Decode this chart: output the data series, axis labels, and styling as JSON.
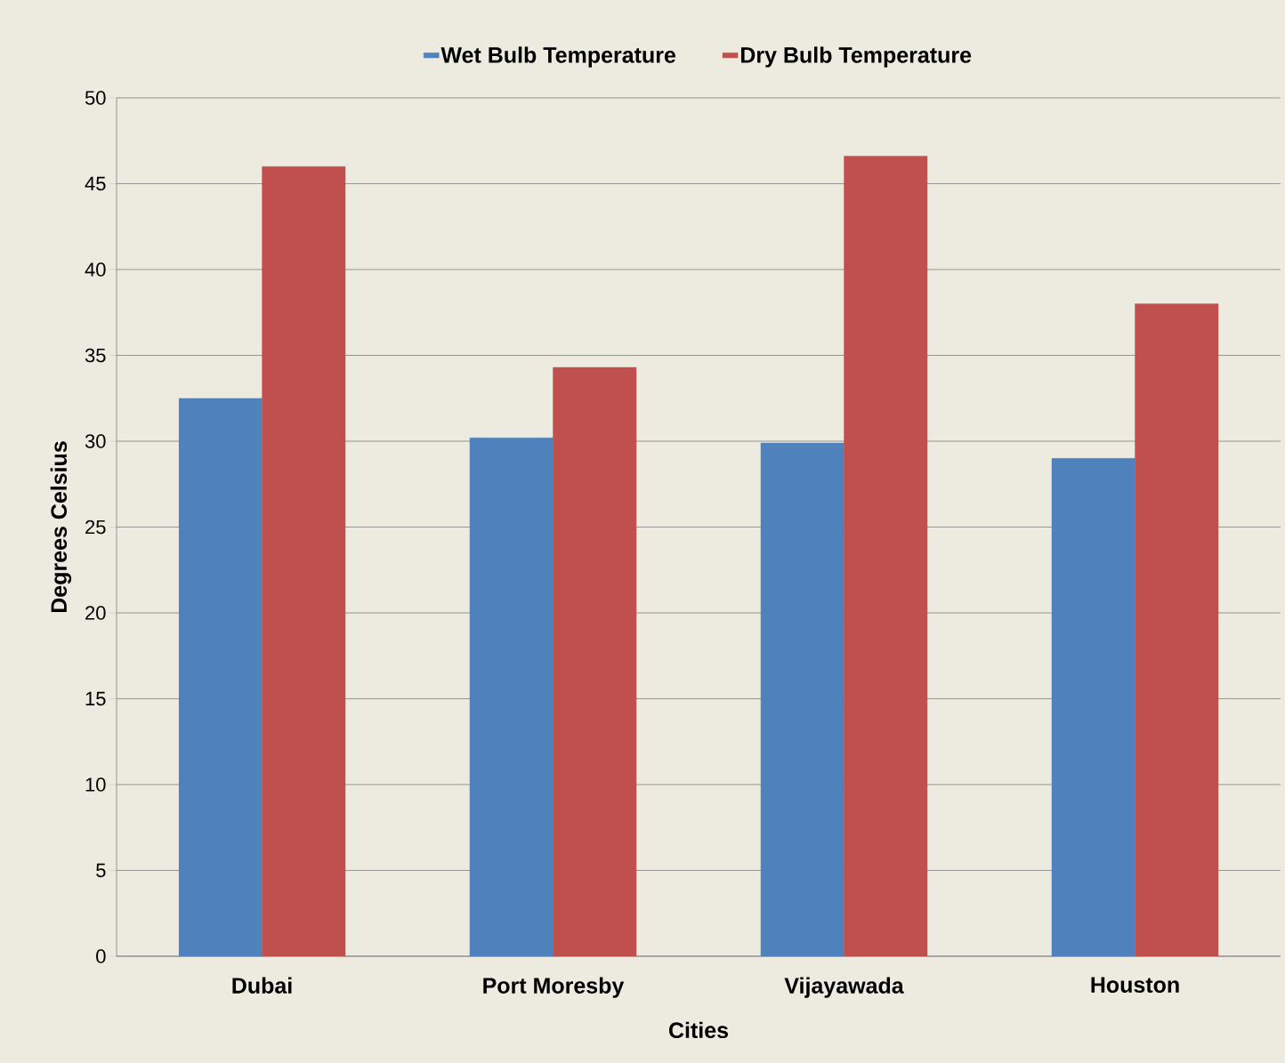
{
  "chart_data": {
    "type": "bar",
    "xlabel": "Cities",
    "ylabel": "Degrees Celsius",
    "categories": [
      "Dubai",
      "Port Moresby",
      "Vijayawada",
      "Houston"
    ],
    "series": [
      {
        "name": "Wet Bulb Temperature",
        "color": "#4f81bd",
        "values": [
          32.5,
          30.2,
          29.9,
          29.0
        ]
      },
      {
        "name": "Dry Bulb Temperature",
        "color": "#c0504d",
        "values": [
          46.0,
          34.3,
          46.6,
          38.0
        ]
      }
    ],
    "ylim": [
      0,
      50
    ],
    "yticks": [
      0,
      5,
      10,
      15,
      20,
      25,
      30,
      35,
      40,
      45,
      50
    ],
    "grid": "y",
    "legend": "top"
  }
}
